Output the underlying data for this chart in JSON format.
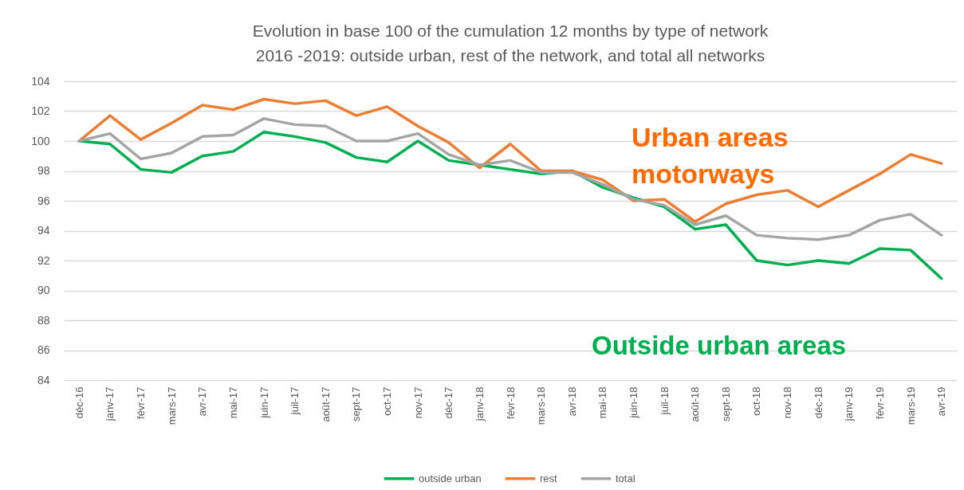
{
  "chart_data": {
    "type": "line",
    "title": "Evolution in base 100 of the cumulation 12 months by type of network",
    "subtitle": "2016 -2019: outside urban, rest of the network, and total all networks",
    "categories": [
      "déc-16",
      "janv-17",
      "févr-17",
      "mars-17",
      "avr-17",
      "mai-17",
      "juin-17",
      "juil-17",
      "août-17",
      "sept-17",
      "oct-17",
      "nov-17",
      "déc-17",
      "janv-18",
      "févr-18",
      "mars-18",
      "avr-18",
      "mai-18",
      "juin-18",
      "juil-18",
      "août-18",
      "sept-18",
      "oct-18",
      "nov-18",
      "déc-18",
      "janv-19",
      "févr-19",
      "mars-19",
      "avr-19"
    ],
    "series": [
      {
        "name": "outside urban",
        "color": "#00b050",
        "values": [
          100,
          99.8,
          98.1,
          97.9,
          99.0,
          99.3,
          100.6,
          100.3,
          99.9,
          98.9,
          98.6,
          100.0,
          98.7,
          98.4,
          98.1,
          97.8,
          98.0,
          96.9,
          96.2,
          95.6,
          94.1,
          94.4,
          92.0,
          91.7,
          92.0,
          91.8,
          92.8,
          92.7,
          90.8
        ]
      },
      {
        "name": "rest",
        "color": "#ed7d31",
        "values": [
          100,
          101.7,
          100.1,
          101.2,
          102.4,
          102.1,
          102.8,
          102.5,
          102.7,
          101.7,
          102.3,
          101.0,
          99.9,
          98.2,
          99.8,
          98.0,
          98.0,
          97.4,
          96.0,
          96.1,
          94.6,
          95.8,
          96.4,
          96.7,
          95.6,
          96.7,
          97.8,
          99.1,
          98.5
        ]
      },
      {
        "name": "total",
        "color": "#a5a5a5",
        "values": [
          100,
          100.5,
          98.8,
          99.2,
          100.3,
          100.4,
          101.5,
          101.1,
          101.0,
          100.0,
          100.0,
          100.5,
          99.1,
          98.4,
          98.7,
          97.9,
          97.9,
          97.1,
          96.1,
          95.7,
          94.4,
          95.0,
          93.7,
          93.5,
          93.4,
          93.7,
          94.7,
          95.1,
          93.7
        ]
      }
    ],
    "ylim": [
      84,
      104
    ],
    "yticks": [
      84,
      86,
      88,
      90,
      92,
      94,
      96,
      98,
      100,
      102,
      104
    ],
    "grid": "y",
    "legend": "bottom",
    "annotations": [
      "Urban areas",
      "motorways",
      "Outside urban areas"
    ]
  }
}
